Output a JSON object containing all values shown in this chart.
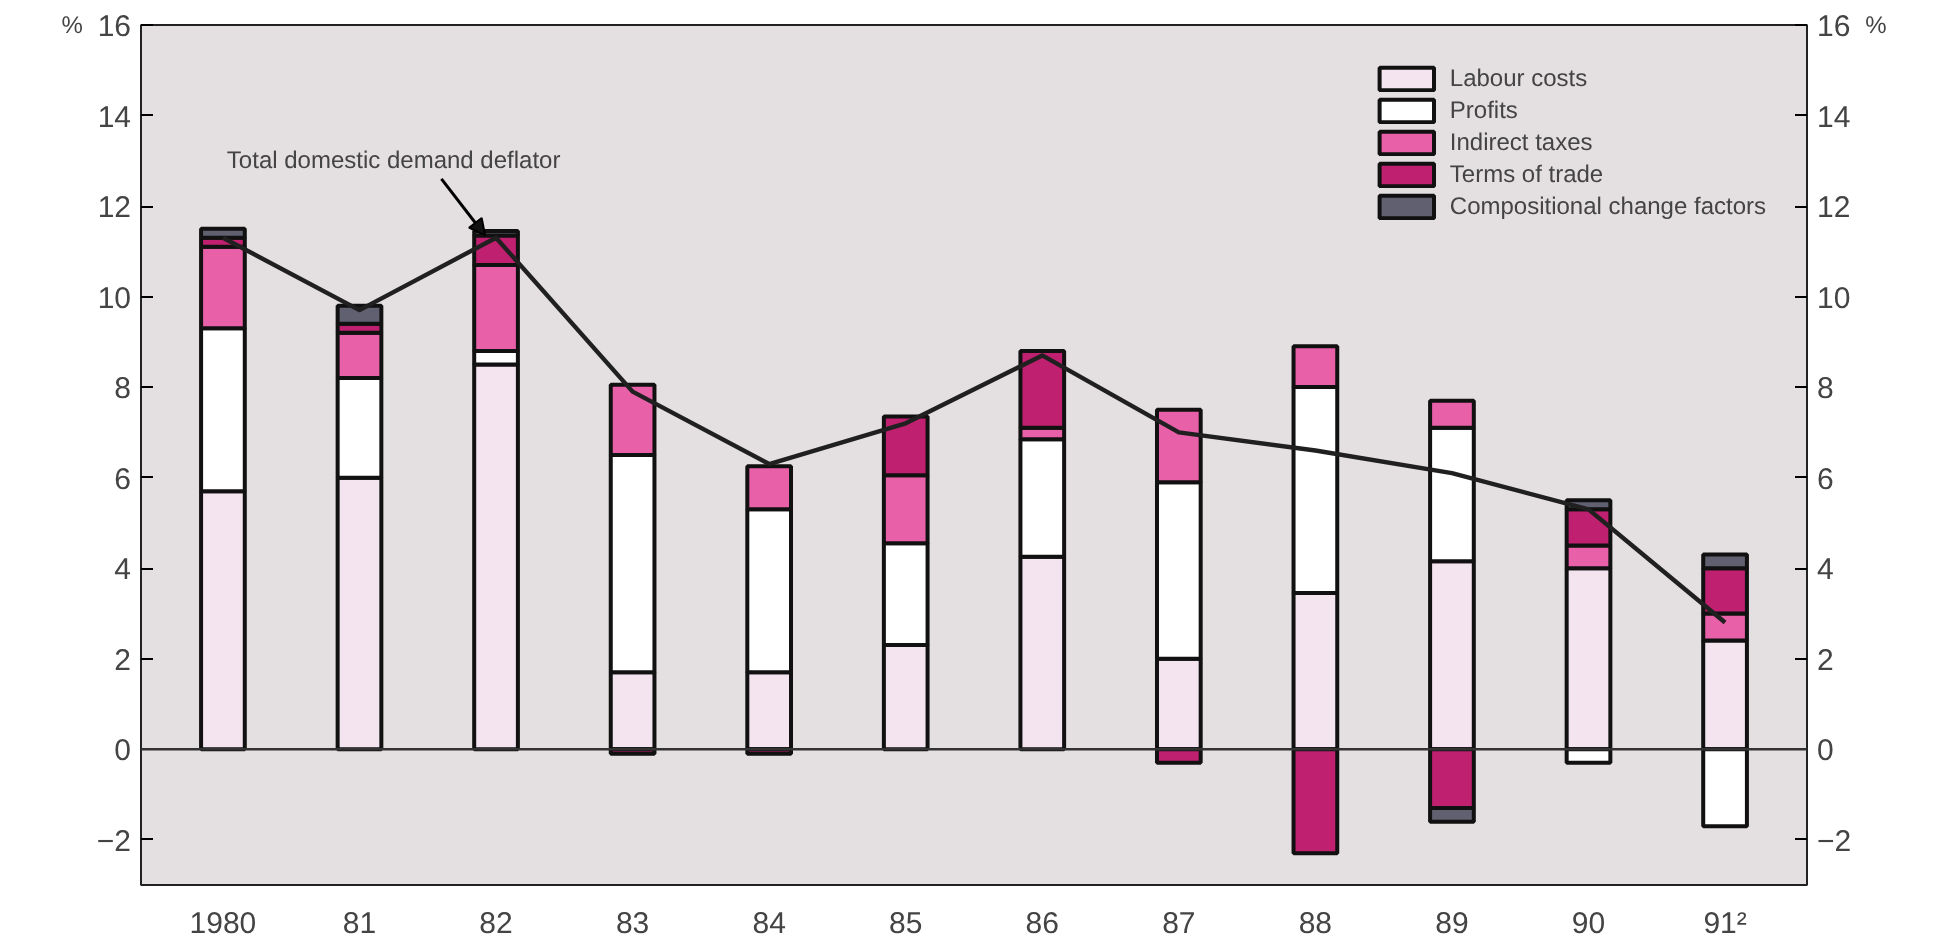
{
  "chart_data": {
    "type": "bar",
    "stacked": true,
    "categories": [
      "1980",
      "81",
      "82",
      "83",
      "84",
      "85",
      "86",
      "87",
      "88",
      "89",
      "90",
      "91²"
    ],
    "series": [
      {
        "name": "Labour costs",
        "color": "#f4e4f0",
        "values": [
          5.7,
          6.0,
          8.5,
          1.7,
          1.7,
          2.3,
          4.25,
          2.0,
          3.45,
          4.15,
          4.0,
          2.4
        ]
      },
      {
        "name": "Profits",
        "color": "#ffffff",
        "values": [
          3.6,
          2.2,
          0.3,
          4.8,
          3.6,
          2.25,
          2.6,
          3.9,
          4.55,
          2.95,
          -0.3,
          -1.7
        ]
      },
      {
        "name": "Indirect taxes",
        "color": "#e860a8",
        "values": [
          1.8,
          1.0,
          1.9,
          1.55,
          0.95,
          1.5,
          0.25,
          1.6,
          0.9,
          0.6,
          0.5,
          0.6
        ]
      },
      {
        "name": "Terms of trade",
        "color": "#c02070",
        "values": [
          0.2,
          0.2,
          0.65,
          -0.1,
          -0.1,
          1.3,
          1.7,
          -0.3,
          -2.3,
          -1.3,
          0.8,
          1.0
        ]
      },
      {
        "name": "Compositional change factors",
        "color": "#606070",
        "values": [
          0.2,
          0.4,
          0.1,
          null,
          null,
          null,
          null,
          null,
          null,
          -0.3,
          0.2,
          0.3
        ]
      },
      {
        "type": "line",
        "color": "#202020",
        "values": [
          11.3,
          9.7,
          11.3,
          7.9,
          6.3,
          7.2,
          8.7,
          7.0,
          6.6,
          6.1,
          5.3,
          2.8
        ]
      }
    ],
    "annotations": [
      {
        "text": "Total domestic demand deflator",
        "x": "82",
        "y": 11.3
      }
    ],
    "ylabel": "%",
    "y2label": "%",
    "ylim": [
      -3,
      16
    ],
    "yticks": [
      -2,
      0,
      2,
      4,
      6,
      8,
      10,
      12,
      14,
      16
    ],
    "y2lim": [
      -3,
      16
    ],
    "y2ticks": [
      -2,
      0,
      2,
      4,
      6,
      8,
      10,
      12,
      14,
      16
    ],
    "ref_lines": [
      {
        "axis": "y",
        "value": 0,
        "color": "#333333"
      }
    ],
    "legend": "top right",
    "grid": false
  }
}
